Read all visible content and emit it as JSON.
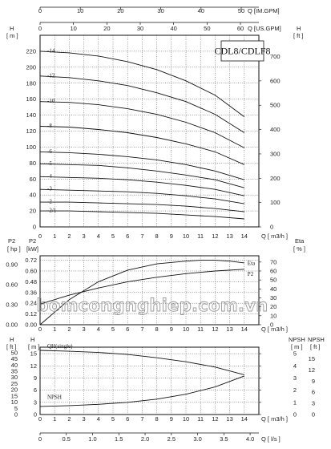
{
  "watermark": "bomcongnghiep.com.vn",
  "chart_data": [
    {
      "type": "line",
      "title": "CDL8/CDLF8",
      "x_label_bottom": "Q [ m3/h ]",
      "x_label_top1": "Q [IM.GPM]",
      "x_label_top2": "Q [US.GPM]",
      "y_label_left": "H [ m ]",
      "y_label_right": "H [ ft ]",
      "xlim": [
        0,
        15
      ],
      "ylim": [
        0,
        240
      ],
      "xticks": [
        0,
        1,
        2,
        3,
        4,
        5,
        6,
        7,
        8,
        9,
        10,
        11,
        12,
        13,
        14
      ],
      "yticks": [
        0,
        20,
        40,
        60,
        80,
        100,
        120,
        140,
        160,
        180,
        200,
        220
      ],
      "yticks_ft": [
        0,
        100,
        200,
        300,
        400,
        500,
        600,
        700
      ],
      "top_ticks_im": [
        0,
        10,
        20,
        30,
        40,
        50
      ],
      "top_ticks_us": [
        0,
        10,
        20,
        30,
        40,
        50,
        60
      ],
      "x": [
        0,
        2,
        4,
        6,
        8,
        10,
        12,
        14
      ],
      "series": [
        {
          "name": "14",
          "values": [
            220,
            218,
            214,
            207,
            197,
            183,
            165,
            138
          ]
        },
        {
          "name": "12",
          "values": [
            189,
            187,
            183,
            177,
            168,
            157,
            141,
            118
          ]
        },
        {
          "name": "10",
          "values": [
            157,
            156,
            153,
            148,
            141,
            131,
            118,
            99
          ]
        },
        {
          "name": "8",
          "values": [
            126,
            125,
            122,
            118,
            112,
            104,
            94,
            78
          ]
        },
        {
          "name": "6",
          "values": [
            94,
            93,
            91,
            88,
            84,
            78,
            70,
            59
          ]
        },
        {
          "name": "5",
          "values": [
            79,
            78,
            77,
            74,
            70,
            65,
            59,
            49
          ]
        },
        {
          "name": "4",
          "values": [
            63,
            62,
            61,
            59,
            56,
            52,
            47,
            39
          ]
        },
        {
          "name": "3",
          "values": [
            47,
            46,
            45,
            44,
            42,
            39,
            35,
            29
          ]
        },
        {
          "name": "2",
          "values": [
            31,
            31,
            30,
            29,
            28,
            26,
            23,
            19
          ]
        },
        {
          "name": "2/1",
          "values": [
            20,
            20,
            19,
            18,
            17,
            15,
            13,
            10
          ]
        }
      ]
    },
    {
      "type": "line",
      "x_label": "Q [ m3/h ]",
      "y_label_p2_hp": "P2 [ hp ]",
      "y_label_p2_kw": "P2 [kW]",
      "y_label_eta": "Eta [ % ]",
      "xlim": [
        0,
        15
      ],
      "xticks": [
        0,
        1,
        2,
        3,
        4,
        5,
        6,
        7,
        8,
        9,
        10,
        11,
        12,
        13,
        14
      ],
      "hp_ticks": [
        "0.00",
        "0.30",
        "0.60",
        "0.90"
      ],
      "kw_ticks": [
        "0.00",
        "0.12",
        "0.24",
        "0.36",
        "0.48",
        "0.60",
        "0.72"
      ],
      "eta_ticks": [
        0,
        10,
        20,
        30,
        40,
        50,
        60,
        70
      ],
      "series": [
        {
          "name": "Eta",
          "axis": "eta",
          "x": [
            0,
            2,
            4,
            6,
            8,
            10,
            11,
            12,
            13,
            14
          ],
          "values": [
            0,
            28,
            48,
            61,
            68,
            71,
            72,
            72,
            71,
            69
          ]
        },
        {
          "name": "P2",
          "axis": "kw",
          "x": [
            0,
            2,
            4,
            6,
            8,
            10,
            12,
            14
          ],
          "values": [
            0.23,
            0.33,
            0.41,
            0.48,
            0.53,
            0.57,
            0.6,
            0.62
          ]
        }
      ]
    },
    {
      "type": "line",
      "x_label": "Q [ m3/h ]",
      "x_label_ls": "Q [ l/s ]",
      "y_label_h_ft": "H [ ft ]",
      "y_label_h_m": "H [ m ]",
      "y_label_npsh_m": "NPSH [ m ]",
      "y_label_npsh_ft": "NPSH [ ft ]",
      "xlim": [
        0,
        15
      ],
      "xticks": [
        0,
        1,
        2,
        3,
        4,
        5,
        6,
        7,
        8,
        9,
        10,
        11,
        12,
        13,
        14
      ],
      "ls_ticks": [
        "0",
        "0.5",
        "1.0",
        "1.5",
        "2.0",
        "2.5",
        "3.0",
        "3.5",
        "4.0"
      ],
      "h_m_ticks": [
        0,
        3,
        6,
        9,
        12,
        15
      ],
      "h_ft_ticks": [
        0,
        5,
        10,
        15,
        20,
        25,
        30,
        35,
        40,
        45,
        50
      ],
      "npsh_m_ticks": [
        0,
        1,
        2,
        3,
        4,
        5
      ],
      "npsh_ft_ticks": [
        0,
        3,
        6,
        9,
        12,
        15
      ],
      "series": [
        {
          "name": "QH(single)",
          "axis": "h_m",
          "x": [
            0,
            2,
            4,
            6,
            8,
            10,
            12,
            14
          ],
          "values": [
            15.8,
            15.6,
            15.3,
            14.8,
            14.0,
            13.0,
            11.7,
            9.8
          ]
        },
        {
          "name": "NPSH",
          "axis": "h_m",
          "x": [
            0,
            2,
            4,
            6,
            8,
            10,
            12,
            14
          ],
          "values": [
            2.0,
            2.2,
            2.5,
            3.0,
            3.8,
            5.0,
            6.8,
            9.5
          ]
        }
      ]
    }
  ]
}
